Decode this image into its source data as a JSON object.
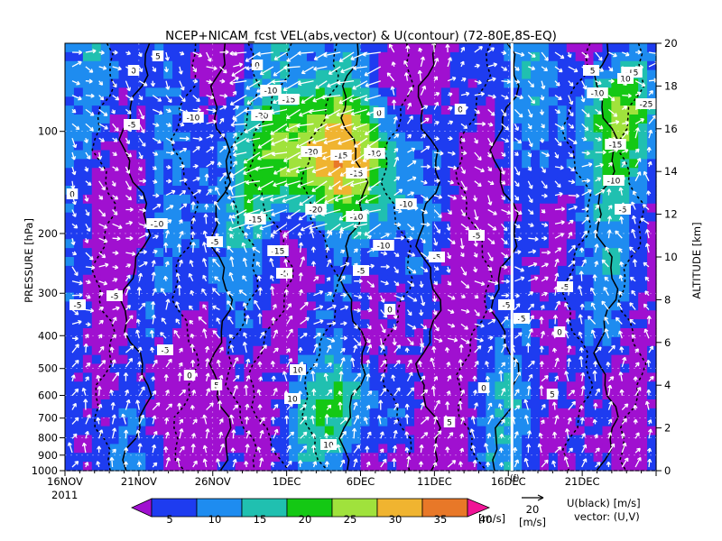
{
  "chart_data": {
    "type": "heatmap",
    "title": "NCEP+NICAM_fcst VEL(abs,vector) & U(contour)   (72-80E,8S-EQ)",
    "ylabel": "PRESSURE [hPa]",
    "ylabel_right": "ALTITUDE [km]",
    "year_label": "2011",
    "x_ticks": [
      "16NOV",
      "21NOV",
      "26NOV",
      "1DEC",
      "6DEC",
      "11DEC",
      "16DEC",
      "21DEC"
    ],
    "x_marker": "16DEC",
    "x_marker_label": "(f)",
    "y_ticks": [
      "100",
      "200",
      "300",
      "400",
      "500",
      "600",
      "700",
      "800",
      "900",
      "1000"
    ],
    "y_ticks_right": [
      "0",
      "2",
      "4",
      "6",
      "8",
      "10",
      "12",
      "14",
      "16",
      "18",
      "20"
    ],
    "colorbar": {
      "levels": [
        "5",
        "10",
        "15",
        "20",
        "25",
        "30",
        "35",
        "40"
      ],
      "colors": [
        "#a010d0",
        "#1e3cf0",
        "#1e8cf0",
        "#20c0b0",
        "#14c814",
        "#a0e23c",
        "#f0b430",
        "#e87828",
        "#f01496"
      ],
      "unit": "[m/s]"
    },
    "vector_ref": {
      "value": "20",
      "unit": "[m/s]"
    },
    "legend_note": [
      "U(black) [m/s]",
      "vector: (U,V)"
    ],
    "contour_labels": [
      "0",
      "5",
      "10",
      "-5",
      "-10",
      "-15",
      "-20",
      "-25"
    ]
  }
}
